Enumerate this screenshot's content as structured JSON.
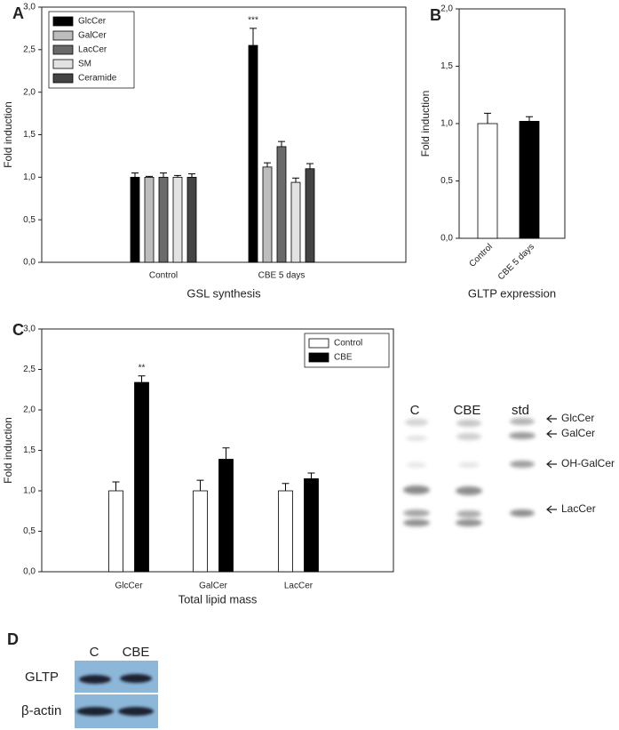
{
  "chart_data": [
    {
      "panel": "A",
      "type": "bar",
      "x_label": "GSL synthesis",
      "y_label": "Fold induction",
      "categories": [
        "Control",
        "CBE 5 days"
      ],
      "series": [
        {
          "name": "GlcCer",
          "color": "#000000",
          "values": [
            1.0,
            2.55
          ],
          "errors": [
            0.05,
            0.2
          ],
          "significance": [
            null,
            "***"
          ]
        },
        {
          "name": "GalCer",
          "color": "#bdbdbd",
          "values": [
            1.0,
            1.12
          ],
          "errors": [
            0.01,
            0.05
          ]
        },
        {
          "name": "LacCer",
          "color": "#6a6a6a",
          "values": [
            1.0,
            1.36
          ],
          "errors": [
            0.05,
            0.06
          ]
        },
        {
          "name": "SM",
          "color": "#e2e2e2",
          "values": [
            1.0,
            0.94
          ],
          "errors": [
            0.02,
            0.05
          ]
        },
        {
          "name": "Ceramide",
          "color": "#444444",
          "values": [
            1.0,
            1.1
          ],
          "errors": [
            0.04,
            0.06
          ]
        }
      ],
      "ylim": [
        0,
        3
      ],
      "yticks": [
        {
          "value": 0,
          "label": "0,0"
        },
        {
          "value": 0.5,
          "label": "0,5"
        },
        {
          "value": 1,
          "label": "1,0"
        },
        {
          "value": 1.5,
          "label": "1,5"
        },
        {
          "value": 2,
          "label": "2,0"
        },
        {
          "value": 2.5,
          "label": "2,5"
        },
        {
          "value": 3,
          "label": "3,0"
        }
      ],
      "legend": "upper left"
    },
    {
      "panel": "B",
      "type": "bar",
      "x_label": "GLTP expression",
      "y_label": "Fold induction",
      "categories": [
        "Control",
        "CBE 5 days"
      ],
      "values": [
        1.0,
        1.02
      ],
      "errors": [
        0.09,
        0.04
      ],
      "colors": [
        "#ffffff",
        "#000000"
      ],
      "ylim": [
        0,
        2
      ],
      "yticks": [
        {
          "value": 0,
          "label": "0,0"
        },
        {
          "value": 0.5,
          "label": "0,5"
        },
        {
          "value": 1,
          "label": "1,0"
        },
        {
          "value": 1.5,
          "label": "1,5"
        },
        {
          "value": 2,
          "label": "2,0"
        }
      ]
    },
    {
      "panel": "C",
      "type": "bar",
      "x_label": "Total lipid mass",
      "y_label": "Fold induction",
      "categories": [
        "GlcCer",
        "GalCer",
        "LacCer"
      ],
      "series": [
        {
          "name": "Control",
          "color": "#ffffff",
          "values": [
            1.0,
            1.0,
            1.0
          ],
          "errors": [
            0.11,
            0.13,
            0.09
          ]
        },
        {
          "name": "CBE",
          "color": "#000000",
          "values": [
            2.34,
            1.39,
            1.15
          ],
          "errors": [
            0.08,
            0.14,
            0.07
          ],
          "significance": [
            "**",
            null,
            null
          ]
        }
      ],
      "ylim": [
        0,
        3
      ],
      "yticks": [
        {
          "value": 0,
          "label": "0,0"
        },
        {
          "value": 0.5,
          "label": "0,5"
        },
        {
          "value": 1,
          "label": "1,0"
        },
        {
          "value": 1.5,
          "label": "1,5"
        },
        {
          "value": 2,
          "label": "2,0"
        },
        {
          "value": 2.5,
          "label": "2,5"
        },
        {
          "value": 3,
          "label": "3,0"
        }
      ],
      "legend": "upper right"
    }
  ],
  "tlc": {
    "lanes": [
      "C",
      "CBE",
      "std"
    ],
    "bands": [
      "GlcCer",
      "GalCer",
      "OH-GalCer",
      "LacCer"
    ]
  },
  "blot": {
    "panel": "D",
    "lanes": [
      "C",
      "CBE"
    ],
    "rows": [
      "GLTP",
      "β-actin"
    ]
  }
}
